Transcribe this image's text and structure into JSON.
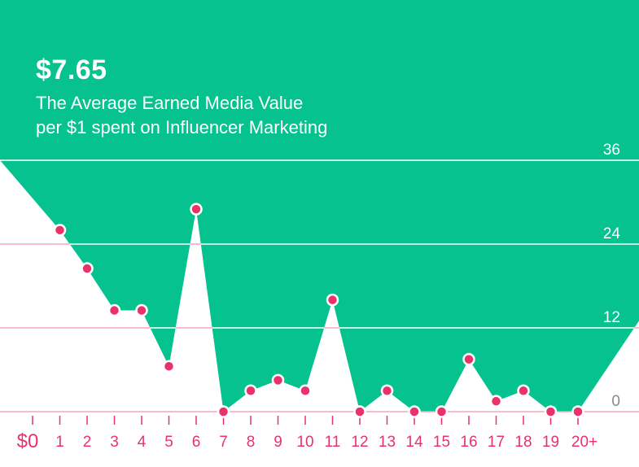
{
  "headline": {
    "value": "$7.65",
    "subtitle_line1": "The Average Earned Media Value",
    "subtitle_line2": "per $1 spent on Influencer Marketing"
  },
  "colors": {
    "background": "#05c28f",
    "area": "#ffffff",
    "grid": "#ffffff",
    "grid_low": "#f4a7c2",
    "point": "#e8336a",
    "axis_label": "#e8336a",
    "y_label": "#ffffff",
    "zero_label": "#8a8a8a"
  },
  "chart_data": {
    "type": "area",
    "title": "The Average Earned Media Value per $1 spent on Influencer Marketing",
    "highlight": "$7.65",
    "categories": [
      "$0",
      "1",
      "2",
      "3",
      "4",
      "5",
      "6",
      "7",
      "8",
      "9",
      "10",
      "11",
      "12",
      "13",
      "14",
      "15",
      "16",
      "17",
      "18",
      "19",
      "20+"
    ],
    "values": [
      null,
      26,
      20.5,
      14.5,
      14.5,
      6.5,
      29,
      0,
      3,
      4.5,
      3,
      16,
      0,
      3,
      0,
      0,
      7.5,
      1.5,
      3,
      0,
      0
    ],
    "ylim": [
      0,
      36
    ],
    "yticks": [
      0,
      12,
      24,
      36
    ],
    "ytick_labels": [
      "0",
      "12",
      "24",
      "36"
    ],
    "xlabel": "",
    "ylabel": "",
    "grid": true
  }
}
